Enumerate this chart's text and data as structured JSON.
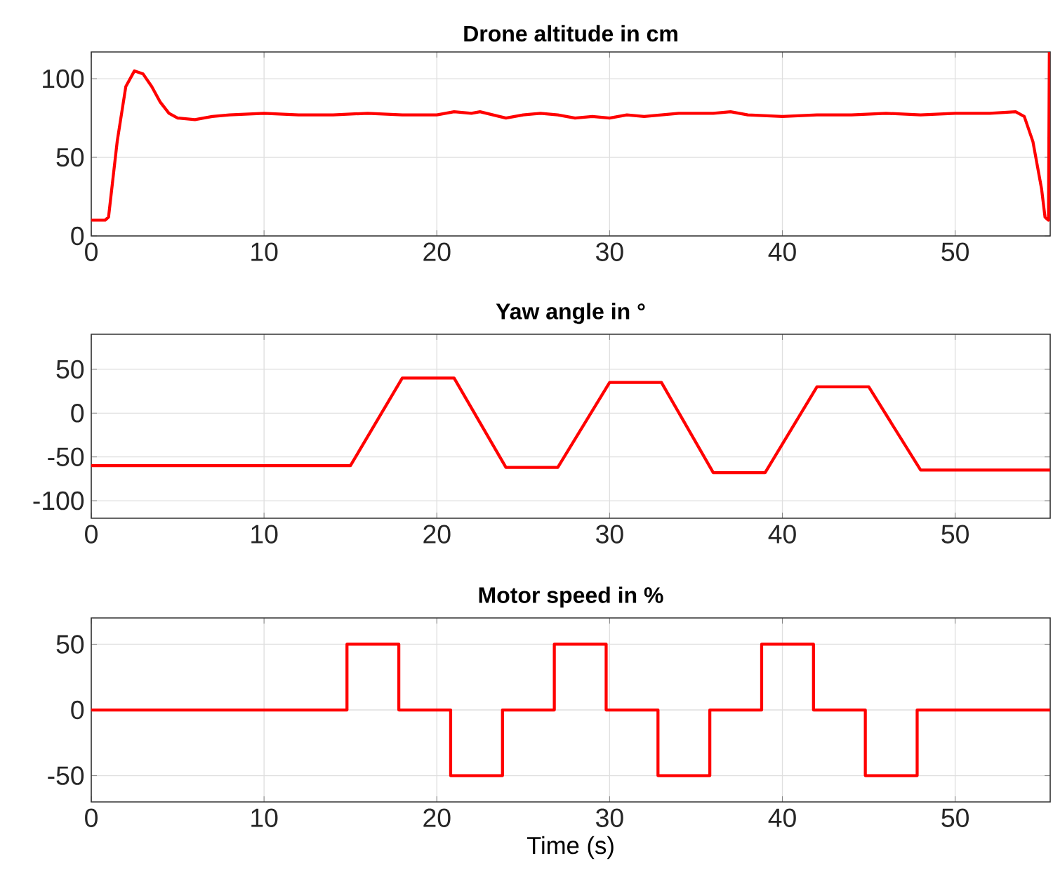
{
  "chart_data": [
    {
      "type": "line",
      "title": "Drone altitude in cm",
      "color": "#ff0000",
      "grid": true,
      "xlim": [
        0,
        55.5
      ],
      "xticks": [
        0,
        10,
        20,
        30,
        40,
        50
      ],
      "ylim": [
        0,
        117
      ],
      "yticks": [
        0,
        50,
        100
      ],
      "x": [
        0,
        0.8,
        1.0,
        1.5,
        2.0,
        2.5,
        3.0,
        3.5,
        4.0,
        4.5,
        5.0,
        6,
        7,
        8,
        10,
        12,
        14,
        16,
        18,
        20,
        21,
        22,
        22.5,
        24,
        25,
        26,
        27,
        28,
        29,
        30,
        31,
        32,
        34,
        36,
        37,
        38,
        40,
        42,
        44,
        46,
        48,
        50,
        52,
        53.5,
        54,
        54.5,
        55,
        55.2,
        55.4,
        55.45
      ],
      "values": [
        10,
        10,
        12,
        60,
        95,
        105,
        103,
        95,
        85,
        78,
        75,
        74,
        76,
        77,
        78,
        77,
        77,
        78,
        77,
        77,
        79,
        78,
        79,
        75,
        77,
        78,
        77,
        75,
        76,
        75,
        77,
        76,
        78,
        78,
        79,
        77,
        76,
        77,
        77,
        78,
        77,
        78,
        78,
        79,
        76,
        60,
        30,
        12,
        10,
        117
      ]
    },
    {
      "type": "line",
      "title": "Yaw angle in °",
      "color": "#ff0000",
      "grid": true,
      "xlim": [
        0,
        55.5
      ],
      "xticks": [
        0,
        10,
        20,
        30,
        40,
        50
      ],
      "ylim": [
        -120,
        90
      ],
      "yticks": [
        -100,
        -50,
        0,
        50
      ],
      "x": [
        0,
        15,
        18,
        21,
        24,
        27,
        30,
        33,
        36,
        39,
        42,
        45,
        48,
        55.5
      ],
      "values": [
        -60,
        -60,
        40,
        40,
        -62,
        -62,
        35,
        35,
        -68,
        -68,
        30,
        30,
        -65,
        -65
      ]
    },
    {
      "type": "step",
      "title": "Motor speed in %",
      "xlabel": "Time (s)",
      "color": "#ff0000",
      "grid": true,
      "xlim": [
        0,
        55.5
      ],
      "xticks": [
        0,
        10,
        20,
        30,
        40,
        50
      ],
      "ylim": [
        -70,
        70
      ],
      "yticks": [
        -50,
        0,
        50
      ],
      "x": [
        0,
        14.8,
        17.8,
        20.8,
        23.8,
        26.8,
        29.8,
        32.8,
        35.8,
        38.8,
        41.8,
        44.8,
        47.8,
        55.5
      ],
      "values": [
        0,
        50,
        0,
        -50,
        0,
        50,
        0,
        -50,
        0,
        50,
        0,
        -50,
        0,
        0
      ]
    }
  ]
}
